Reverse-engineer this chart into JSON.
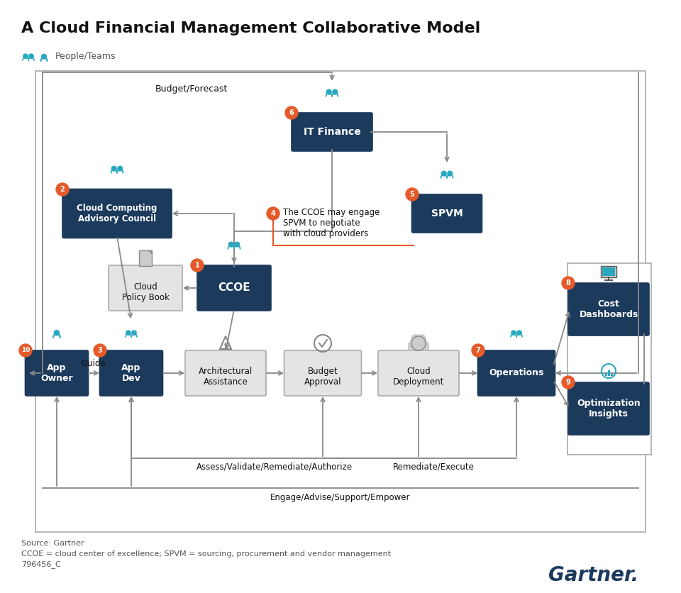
{
  "title": "A Cloud Financial Management Collaborative Model",
  "legend_text": "People/Teams",
  "dark_navy": "#1b3a5c",
  "box_gray": "#e4e4e4",
  "orange": "#e55a2b",
  "teal": "#29a8c0",
  "white": "#ffffff",
  "black": "#111111",
  "gray_arrow": "#888888",
  "footnote1": "Source: Gartner",
  "footnote2": "CCOE = cloud center of excellence; SPVM = sourcing, procurement and vendor management",
  "footnote3": "796456_C",
  "gartner_color": "#1b3a5c"
}
